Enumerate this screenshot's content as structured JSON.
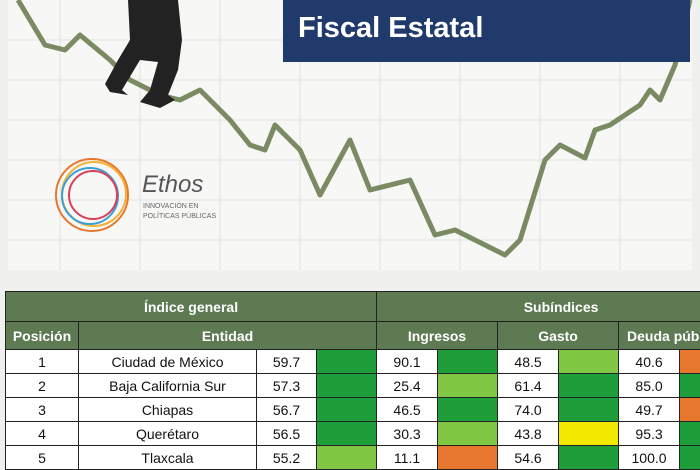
{
  "banner": {
    "title": "Fiscal Estatal",
    "logo_name": "Ethos",
    "logo_tagline_1": "INNOVACIÓN EN",
    "logo_tagline_2": "POLÍTICAS PÚBLICAS"
  },
  "table": {
    "group_headers": [
      "Índice general",
      "Subíndices"
    ],
    "column_headers": [
      "Posición",
      "Entidad",
      "Ingresos",
      "Gasto",
      "Deuda pública"
    ],
    "rows": [
      {
        "position": "1",
        "entity": "Ciudad de México",
        "cells": [
          {
            "value": "59.7",
            "color": "#1e9d3b"
          },
          {
            "value": "90.1",
            "color": "#1e9d3b"
          },
          {
            "value": "48.5",
            "color": "#80c843"
          },
          {
            "value": "40.6",
            "color": "#e8772e"
          }
        ]
      },
      {
        "position": "2",
        "entity": "Baja California Sur",
        "cells": [
          {
            "value": "57.3",
            "color": "#1e9d3b"
          },
          {
            "value": "25.4",
            "color": "#80c843"
          },
          {
            "value": "61.4",
            "color": "#1e9d3b"
          },
          {
            "value": "85.0",
            "color": "#1e9d3b"
          }
        ]
      },
      {
        "position": "3",
        "entity": "Chiapas",
        "cells": [
          {
            "value": "56.7",
            "color": "#1e9d3b"
          },
          {
            "value": "46.5",
            "color": "#1e9d3b"
          },
          {
            "value": "74.0",
            "color": "#1e9d3b"
          },
          {
            "value": "49.7",
            "color": "#e8772e"
          }
        ]
      },
      {
        "position": "4",
        "entity": "Querétaro",
        "cells": [
          {
            "value": "56.5",
            "color": "#1e9d3b"
          },
          {
            "value": "30.3",
            "color": "#80c843"
          },
          {
            "value": "43.8",
            "color": "#f3e900"
          },
          {
            "value": "95.3",
            "color": "#1e9d3b"
          }
        ]
      },
      {
        "position": "5",
        "entity": "Tlaxcala",
        "cells": [
          {
            "value": "55.2",
            "color": "#80c843"
          },
          {
            "value": "11.1",
            "color": "#e8772e"
          },
          {
            "value": "54.6",
            "color": "#1e9d3b"
          },
          {
            "value": "100.0",
            "color": "#1e9d3b"
          }
        ]
      }
    ]
  }
}
